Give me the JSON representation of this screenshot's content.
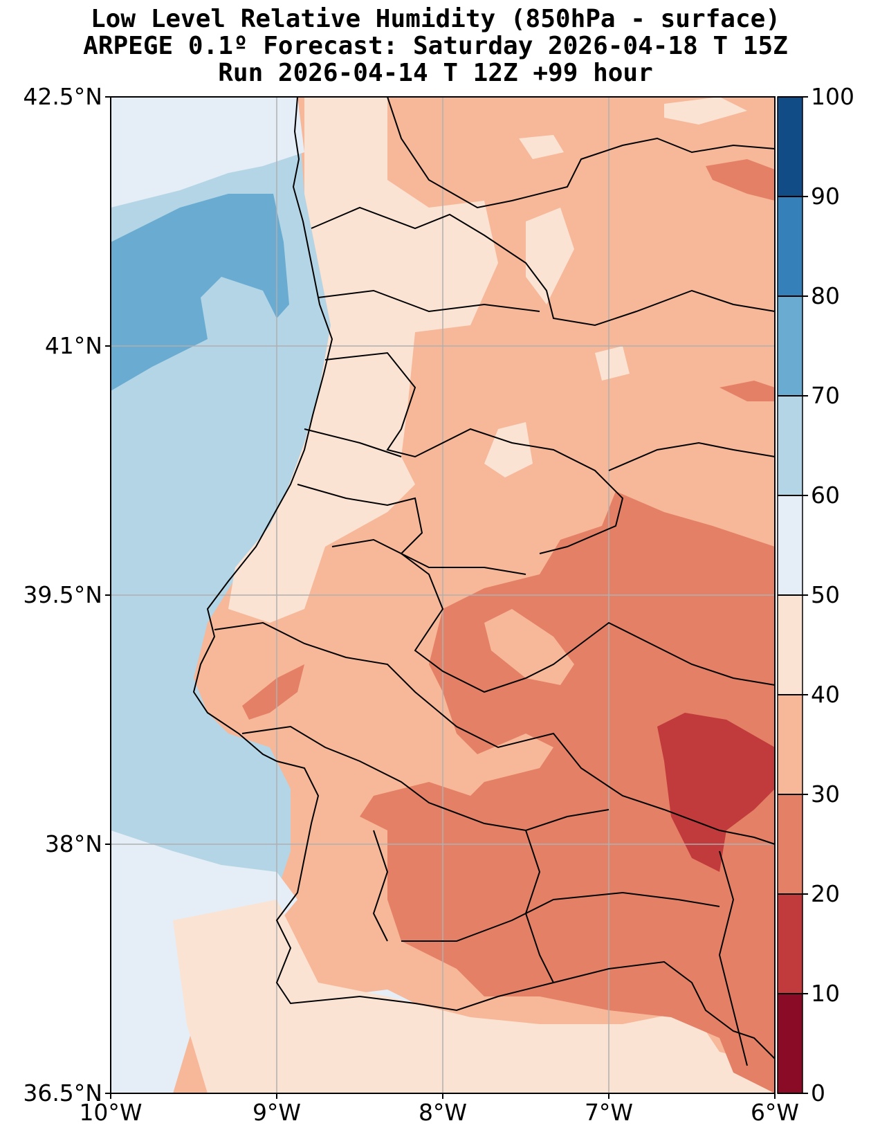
{
  "title": {
    "line1": "Low Level Relative Humidity (850hPa - surface)",
    "line2": "ARPEGE 0.1º Forecast: Saturday 2026-04-18 T 15Z",
    "line3": "Run 2026-04-14 T 12Z +99 hour"
  },
  "map": {
    "lon_range": [
      -10,
      -6
    ],
    "lat_range": [
      36.5,
      42.5
    ],
    "lat_ticks": [
      {
        "value": 42.5,
        "label": "42.5°N"
      },
      {
        "value": 41.0,
        "label": "41°N"
      },
      {
        "value": 39.5,
        "label": "39.5°N"
      },
      {
        "value": 38.0,
        "label": "38°N"
      },
      {
        "value": 36.5,
        "label": "36.5°N"
      }
    ],
    "lon_ticks": [
      {
        "value": -10,
        "label": "10°W"
      },
      {
        "value": -9,
        "label": "9°W"
      },
      {
        "value": -8,
        "label": "8°W"
      },
      {
        "value": -7,
        "label": "7°W"
      },
      {
        "value": -6,
        "label": "6°W"
      }
    ],
    "gridlines": true
  },
  "colorbar": {
    "levels": [
      0,
      10,
      20,
      30,
      40,
      50,
      60,
      70,
      80,
      90,
      100
    ],
    "tick_labels": [
      "0",
      "10",
      "20",
      "30",
      "40",
      "50",
      "60",
      "70",
      "80",
      "90",
      "100"
    ],
    "colors": [
      "#8a0b25",
      "#c23b3c",
      "#e48066",
      "#f7b799",
      "#fbe3d4",
      "#e5eef6",
      "#b4d5e6",
      "#6aabd1",
      "#3580b8",
      "#114c87"
    ]
  }
}
